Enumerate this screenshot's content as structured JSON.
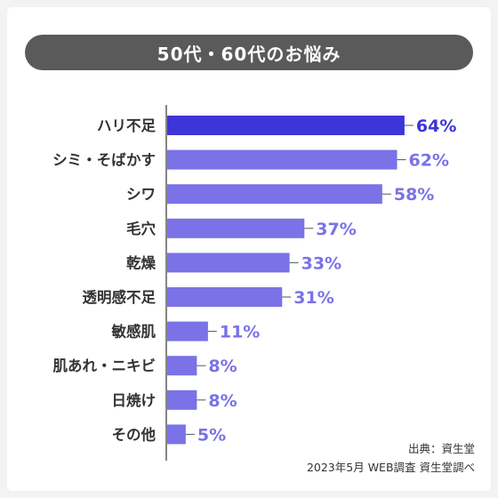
{
  "header": {
    "title": "50代・60代のお悩み"
  },
  "footer": {
    "source": "出典：資生堂",
    "survey": "2023年5月 WEB調査 資生堂調べ"
  },
  "colors": {
    "highlight_bar": "#3d35d8",
    "bar": "#7a72e6",
    "highlight_label": "#3d35d8",
    "label": "#7a72e6",
    "title_bg": "#5a5a5a"
  },
  "chart_data": {
    "type": "bar",
    "orientation": "horizontal",
    "title": "50代・60代のお悩み",
    "categories": [
      "ハリ不足",
      "シミ・そばかす",
      "シワ",
      "毛穴",
      "乾燥",
      "透明感不足",
      "敏感肌",
      "肌あれ・ニキビ",
      "日焼け",
      "その他"
    ],
    "values": [
      64,
      62,
      58,
      37,
      33,
      31,
      11,
      8,
      8,
      5
    ],
    "value_labels": [
      "64%",
      "62%",
      "58%",
      "37%",
      "33%",
      "31%",
      "11%",
      "8%",
      "8%",
      "5%"
    ],
    "highlight_index": 0,
    "unit": "%",
    "grid": false
  }
}
